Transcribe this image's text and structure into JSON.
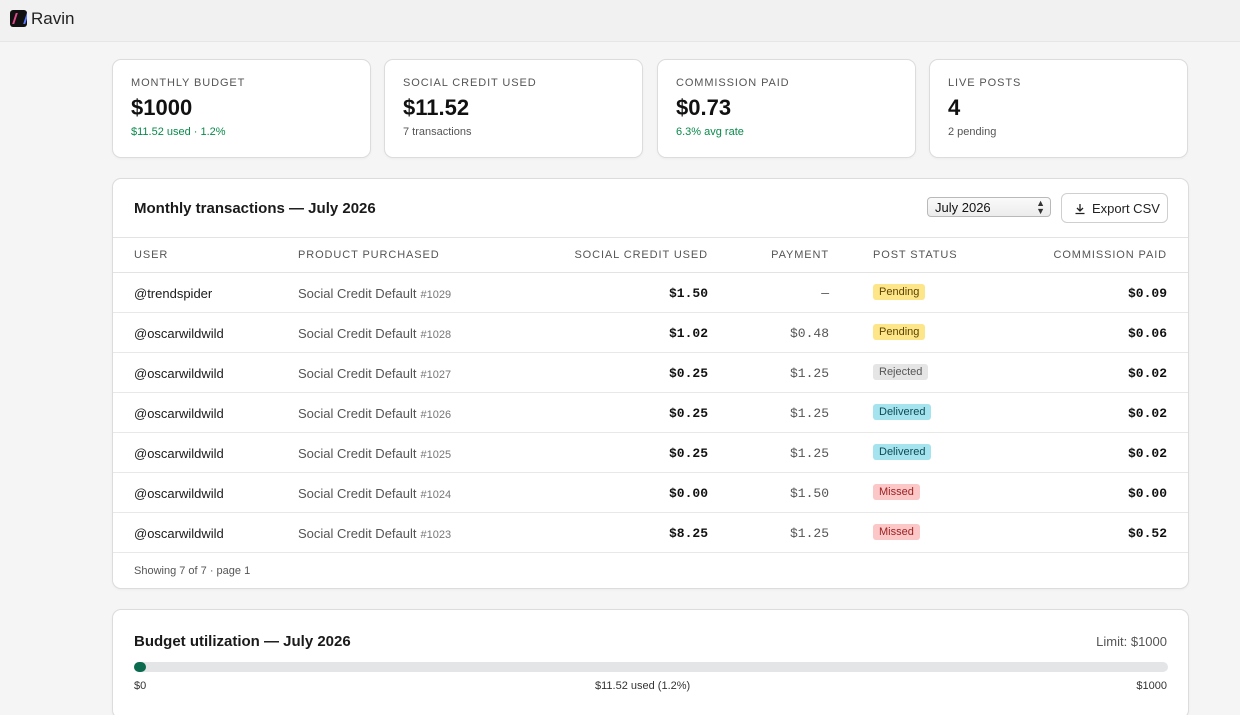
{
  "app": {
    "name": "Ravin"
  },
  "stats": [
    {
      "label": "MONTHLY BUDGET",
      "value": "$1000",
      "sub": "$11.52 used · 1.2%",
      "sub_color": "green"
    },
    {
      "label": "SOCIAL CREDIT USED",
      "value": "$11.52",
      "sub": "7 transactions",
      "sub_color": "gray"
    },
    {
      "label": "COMMISSION PAID",
      "value": "$0.73",
      "sub": "6.3% avg rate",
      "sub_color": "green"
    },
    {
      "label": "LIVE POSTS",
      "value": "4",
      "sub": "2 pending",
      "sub_color": "gray"
    }
  ],
  "transactions": {
    "title": "Monthly transactions — July 2026",
    "month_select": "July 2026",
    "export_label": "Export CSV",
    "columns": [
      "USER",
      "PRODUCT PURCHASED",
      "SOCIAL CREDIT USED",
      "PAYMENT",
      "POST STATUS",
      "COMMISSION PAID"
    ],
    "rows": [
      {
        "user": "@trendspider",
        "product": "Social Credit Default",
        "id": "#1029",
        "credit": "$1.50",
        "payment": "—",
        "status": "Pending",
        "commission": "$0.09"
      },
      {
        "user": "@oscarwildwild",
        "product": "Social Credit Default",
        "id": "#1028",
        "credit": "$1.02",
        "payment": "$0.48",
        "status": "Pending",
        "commission": "$0.06"
      },
      {
        "user": "@oscarwildwild",
        "product": "Social Credit Default",
        "id": "#1027",
        "credit": "$0.25",
        "payment": "$1.25",
        "status": "Rejected",
        "commission": "$0.02"
      },
      {
        "user": "@oscarwildwild",
        "product": "Social Credit Default",
        "id": "#1026",
        "credit": "$0.25",
        "payment": "$1.25",
        "status": "Delivered",
        "commission": "$0.02"
      },
      {
        "user": "@oscarwildwild",
        "product": "Social Credit Default",
        "id": "#1025",
        "credit": "$0.25",
        "payment": "$1.25",
        "status": "Delivered",
        "commission": "$0.02"
      },
      {
        "user": "@oscarwildwild",
        "product": "Social Credit Default",
        "id": "#1024",
        "credit": "$0.00",
        "payment": "$1.50",
        "status": "Missed",
        "commission": "$0.00"
      },
      {
        "user": "@oscarwildwild",
        "product": "Social Credit Default",
        "id": "#1023",
        "credit": "$8.25",
        "payment": "$1.25",
        "status": "Missed",
        "commission": "$0.52"
      }
    ],
    "footer": "Showing 7 of 7 · page 1"
  },
  "budget": {
    "title": "Budget utilization — July 2026",
    "limit_label": "Limit: $1000",
    "used_fraction": 0.0115,
    "min_label": "$0",
    "used_label": "$11.52 used (1.2%)",
    "max_label": "$1000"
  },
  "colors": {
    "accent": "#0a6b4f",
    "positive": "#0a8a4a"
  }
}
